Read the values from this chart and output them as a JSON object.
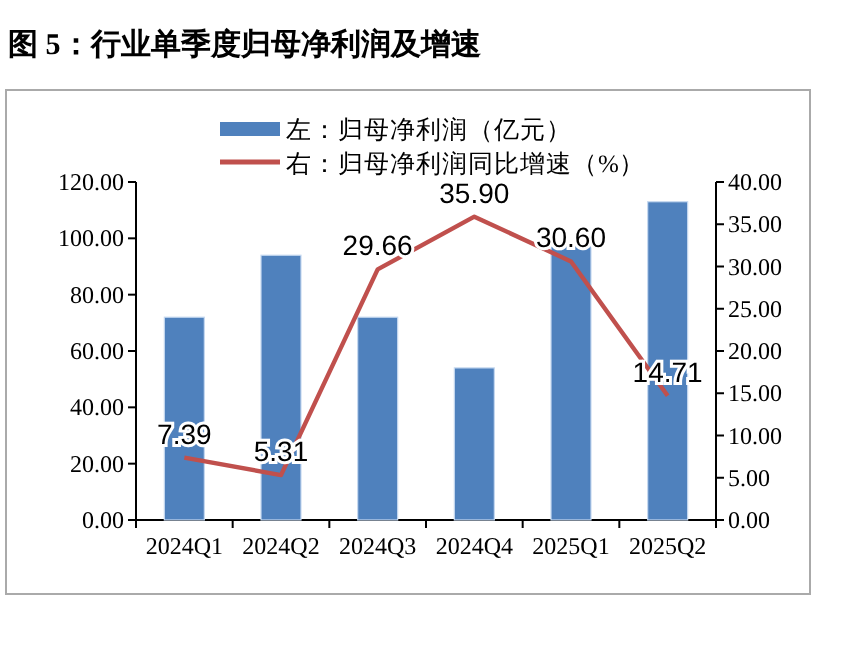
{
  "chart_data": {
    "type": "bar",
    "title": "图 5：行业单季度归母净利润及增速",
    "categories": [
      "2024Q1",
      "2024Q2",
      "2024Q3",
      "2024Q4",
      "2025Q1",
      "2025Q2"
    ],
    "series": [
      {
        "name": "左：归母净利润（亿元）",
        "color": "#4f81bd",
        "values": [
          72,
          94,
          72,
          54,
          98,
          113
        ]
      },
      {
        "type": "line",
        "axis": "y2",
        "name": "右：归母净利润同比增速（%）",
        "color": "#c0504d",
        "values": [
          7.39,
          5.31,
          29.66,
          35.9,
          30.6,
          14.71
        ],
        "value_labels": [
          "7.39",
          "5.31",
          "29.66",
          "35.90",
          "30.60",
          "14.71"
        ]
      }
    ],
    "ylim": [
      0,
      120
    ],
    "yticks": [
      {
        "value": 0,
        "label": "0.00"
      },
      {
        "value": 20,
        "label": "20.00"
      },
      {
        "value": 40,
        "label": "40.00"
      },
      {
        "value": 60,
        "label": "60.00"
      },
      {
        "value": 80,
        "label": "80.00"
      },
      {
        "value": 100,
        "label": "100.00"
      },
      {
        "value": 120,
        "label": "120.00"
      }
    ],
    "y2lim": [
      0,
      40
    ],
    "y2ticks": [
      {
        "value": 0,
        "label": "0.00"
      },
      {
        "value": 5,
        "label": "5.00"
      },
      {
        "value": 10,
        "label": "10.00"
      },
      {
        "value": 15,
        "label": "15.00"
      },
      {
        "value": 20,
        "label": "20.00"
      },
      {
        "value": 25,
        "label": "25.00"
      },
      {
        "value": 30,
        "label": "30.00"
      },
      {
        "value": 35,
        "label": "35.00"
      },
      {
        "value": 40,
        "label": "40.00"
      }
    ],
    "legend": "top",
    "grid": false,
    "marker": "none"
  }
}
